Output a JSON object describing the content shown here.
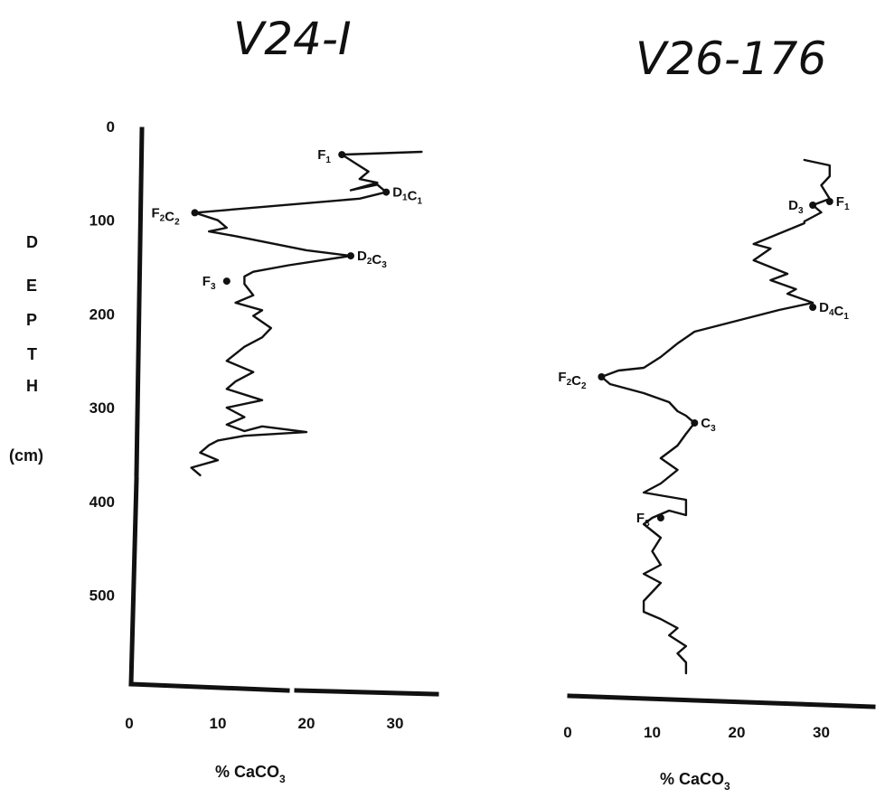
{
  "chart_data": [
    {
      "type": "line",
      "title": "V24-I",
      "xlabel": "% CaCO",
      "xlabel_sub": "3",
      "ylabel_letters": [
        "D",
        "E",
        "P",
        "T",
        "H"
      ],
      "ylabel_unit": "(cm)",
      "x_ticks": [
        "0",
        "10",
        "20",
        "30"
      ],
      "y_ticks": [
        "0",
        "100",
        "200",
        "300",
        "400",
        "500"
      ],
      "xlim": [
        0,
        35
      ],
      "ylim": [
        0,
        600
      ],
      "y_inverted": true,
      "x": [
        33,
        24,
        26,
        27,
        26,
        28,
        25,
        28,
        29,
        26,
        7.4,
        10,
        11,
        9,
        12,
        20,
        25,
        18,
        14,
        13,
        13,
        14,
        12,
        15,
        14,
        16,
        15,
        13,
        11,
        14,
        12,
        11,
        15,
        11,
        13,
        11,
        13,
        15,
        20,
        13,
        10,
        9,
        8,
        10,
        7,
        8
      ],
      "y": [
        27,
        30,
        42,
        48,
        56,
        60,
        68,
        62,
        70,
        77,
        92,
        100,
        108,
        112,
        117,
        132,
        138,
        148,
        155,
        160,
        168,
        180,
        188,
        196,
        202,
        215,
        225,
        235,
        250,
        262,
        272,
        280,
        292,
        300,
        310,
        318,
        325,
        320,
        326,
        330,
        335,
        340,
        348,
        356,
        364,
        372
      ],
      "markers": [
        {
          "label": "F",
          "sub": "1",
          "x": 24,
          "y": 30
        },
        {
          "label": "D",
          "sub": "1",
          "label2": "C",
          "sub2": "1",
          "x": 29,
          "y": 70
        },
        {
          "label": "F",
          "sub": "2",
          "label2": "C",
          "sub2": "2",
          "x": 7.4,
          "y": 92
        },
        {
          "label": "D",
          "sub": "2",
          "label2": "C",
          "sub2": "3",
          "x": 25,
          "y": 138
        },
        {
          "label": "F",
          "sub": "3",
          "x": 11,
          "y": 165
        }
      ]
    },
    {
      "type": "line",
      "title": "V26-176",
      "xlabel": "% CaCO",
      "xlabel_sub": "3",
      "x_ticks": [
        "0",
        "10",
        "20",
        "30"
      ],
      "xlim": [
        0,
        35
      ],
      "ylim": [
        0,
        600
      ],
      "y_inverted": true,
      "x": [
        28,
        31,
        31,
        30,
        31,
        29,
        30,
        28,
        28,
        22,
        24,
        22,
        26,
        24,
        27,
        26,
        29,
        25,
        20,
        15,
        13,
        11,
        9,
        6,
        4,
        5,
        9,
        12,
        13,
        14,
        15,
        14,
        13,
        11,
        13,
        11,
        9,
        14,
        14,
        12,
        10,
        9,
        11,
        10,
        11,
        9,
        11,
        10,
        9,
        9,
        11,
        13,
        12,
        14,
        13,
        14,
        14
      ],
      "y": [
        22,
        28,
        40,
        50,
        65,
        72,
        80,
        90,
        92,
        115,
        120,
        133,
        148,
        155,
        165,
        170,
        180,
        188,
        200,
        212,
        225,
        240,
        252,
        255,
        262,
        270,
        280,
        290,
        300,
        305,
        313,
        325,
        338,
        352,
        365,
        380,
        390,
        398,
        415,
        410,
        418,
        425,
        440,
        455,
        470,
        480,
        490,
        500,
        510,
        522,
        530,
        540,
        548,
        560,
        568,
        578,
        590
      ],
      "markers": [
        {
          "label": "F",
          "sub": "1",
          "x": 31,
          "y": 68
        },
        {
          "label": "D",
          "sub": "3",
          "x": 29,
          "y": 72
        },
        {
          "label": "D",
          "sub": "4",
          "label2": "C",
          "sub2": "1",
          "x": 29,
          "y": 185
        },
        {
          "label": "F",
          "sub": "2",
          "label2": "C",
          "sub2": "2",
          "x": 4,
          "y": 262
        },
        {
          "label": "C",
          "sub": "3",
          "x": 15,
          "y": 313
        },
        {
          "label": "F",
          "sub": "3",
          "x": 11,
          "y": 418
        }
      ]
    }
  ]
}
